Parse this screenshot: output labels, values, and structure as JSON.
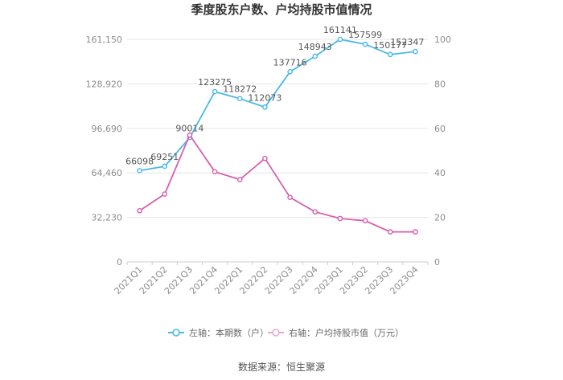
{
  "chart_data": {
    "type": "line",
    "title": "季度股东户数、户均持股市值情况",
    "categories": [
      "2021Q1",
      "2021Q2",
      "2021Q3",
      "2021Q4",
      "2022Q1",
      "2022Q2",
      "2022Q3",
      "2022Q4",
      "2023Q1",
      "2023Q2",
      "2023Q3",
      "2023Q4"
    ],
    "left_axis": {
      "ylim": [
        0,
        161150
      ],
      "ticks": [
        "0",
        "32,230",
        "64,460",
        "96,690",
        "128,920",
        "161,150"
      ],
      "tick_values": [
        0,
        32230,
        64460,
        96690,
        128920,
        161150
      ]
    },
    "right_axis": {
      "ylim": [
        0,
        100
      ],
      "ticks": [
        "0",
        "20",
        "40",
        "60",
        "80",
        "100"
      ],
      "tick_values": [
        0,
        20,
        40,
        60,
        80,
        100
      ]
    },
    "series": [
      {
        "name": "左轴：本期数（户）",
        "axis": "left",
        "color": "#4ab9e8",
        "values": [
          66098,
          69251,
          90014,
          123275,
          118272,
          112073,
          137716,
          148943,
          161141,
          157599,
          150177,
          152347
        ],
        "labels": [
          "66098",
          "69251",
          "90014",
          "123275",
          "118272",
          "112073",
          "137716",
          "148943",
          "161141",
          "157599",
          "150177",
          "152347"
        ]
      },
      {
        "name": "右轴：户均持股市值（万元）",
        "axis": "right",
        "color": "#d65fae",
        "values": [
          23,
          30.5,
          57,
          40.5,
          37,
          46.5,
          29,
          22.5,
          19.5,
          18.5,
          13.5,
          13.5
        ]
      }
    ],
    "grid": true,
    "legend_position": "bottom"
  },
  "source": "数据来源：恒生聚源"
}
